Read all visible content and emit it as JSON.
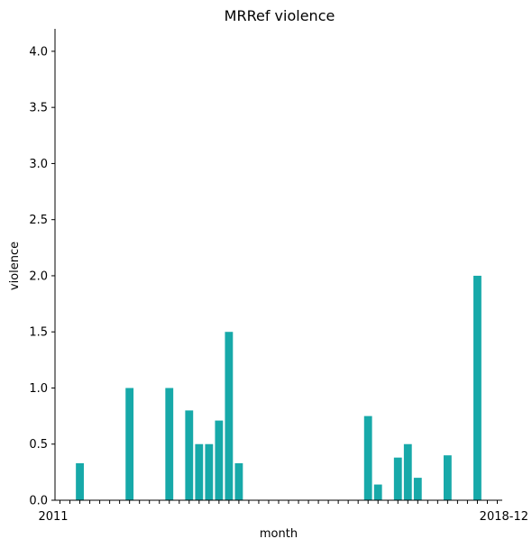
{
  "chart_data": {
    "type": "bar",
    "title": "MRRef violence",
    "xlabel": "month",
    "ylabel": "violence",
    "ylim": [
      0,
      4.2
    ],
    "yticks": [
      0.0,
      0.5,
      1.0,
      1.5,
      2.0,
      2.5,
      3.0,
      3.5,
      4.0
    ],
    "ytick_labels": [
      "0.0",
      "0.5",
      "1.0",
      "1.5",
      "2.0",
      "2.5",
      "3.0",
      "3.5",
      "4.0"
    ],
    "x_first_label": "2011",
    "x_last_label": "2018-12",
    "color": "#17a9a9",
    "categories": [
      "2011",
      "",
      "",
      "",
      "",
      "",
      "",
      "",
      "",
      "",
      "",
      "",
      "",
      "",
      "",
      "",
      "",
      "",
      "",
      "",
      "",
      "",
      "",
      "",
      "",
      "",
      "",
      "",
      "",
      "",
      "",
      "",
      "",
      "",
      "",
      "",
      "",
      "",
      "",
      "",
      "",
      "",
      "",
      "",
      "2018-12"
    ],
    "values": [
      0,
      0,
      0.33,
      0,
      0,
      0,
      0,
      1.0,
      0,
      0,
      0,
      1.0,
      0,
      0.8,
      0.5,
      0.5,
      0.71,
      1.5,
      0.33,
      0,
      0,
      0,
      0,
      0,
      0,
      0,
      0,
      0,
      0,
      0,
      0,
      0.75,
      0.14,
      0,
      0.38,
      0.5,
      0.2,
      0,
      0,
      0.4,
      0,
      0,
      2.0,
      0,
      0
    ]
  }
}
